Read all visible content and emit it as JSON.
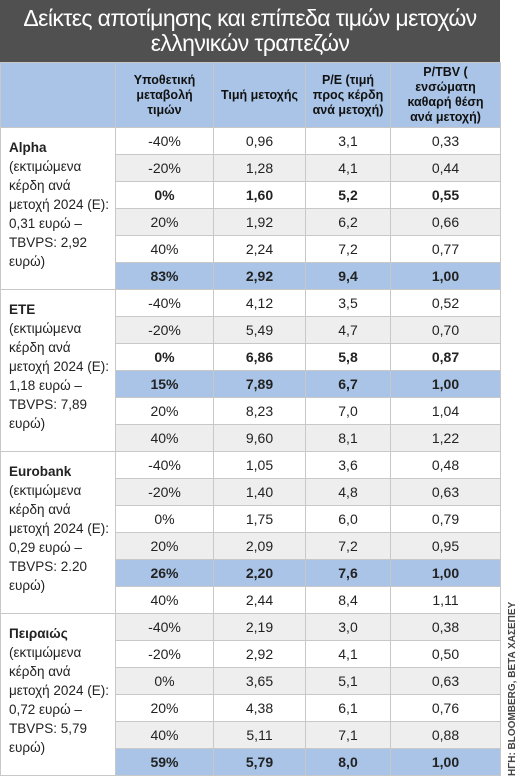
{
  "title": "Δείκτες αποτίμησης και επίπεδα τιμών μετοχών ελληνικών τραπεζών",
  "source": "ΗΓΗ: BLOOMBERG, BETA ΧΑΣΕΠΕΥ",
  "table": {
    "headers": [
      "Υποθετική μεταβολή τιμών",
      "Τιμή μετοχής",
      "P/E (τιμή προς κέρδη ανά μετοχή)",
      "P/TBV ( ενσώματη καθαρή θέση ανά μετοχή)"
    ],
    "groups": [
      {
        "bank": "Alpha",
        "note": "(εκτιμώμενα κέρδη ανά μετοχή 2024 (Ε): 0,31 ευρώ – TBVPS: 2,92 ευρώ)",
        "rows": [
          {
            "cells": [
              "-40%",
              "0,96",
              "3,1",
              "0,33"
            ],
            "emphasis": "plain"
          },
          {
            "cells": [
              "-20%",
              "1,28",
              "4,1",
              "0,44"
            ],
            "emphasis": "shaded"
          },
          {
            "cells": [
              "0%",
              "1,60",
              "5,2",
              "0,55"
            ],
            "emphasis": "bold"
          },
          {
            "cells": [
              "20%",
              "1,92",
              "6,2",
              "0,66"
            ],
            "emphasis": "shaded"
          },
          {
            "cells": [
              "40%",
              "2,24",
              "7,2",
              "0,77"
            ],
            "emphasis": "plain"
          },
          {
            "cells": [
              "83%",
              "2,92",
              "9,4",
              "1,00"
            ],
            "emphasis": "highlight"
          }
        ]
      },
      {
        "bank": "ΕΤΕ",
        "note": "(εκτιμώμενα κέρδη ανά μετοχή 2024 (Ε): 1,18 ευρώ – TBVPS: 7,89 ευρώ)",
        "rows": [
          {
            "cells": [
              "-40%",
              "4,12",
              "3,5",
              "0,52"
            ],
            "emphasis": "plain"
          },
          {
            "cells": [
              "-20%",
              "5,49",
              "4,7",
              "0,70"
            ],
            "emphasis": "shaded"
          },
          {
            "cells": [
              "0%",
              "6,86",
              "5,8",
              "0,87"
            ],
            "emphasis": "bold"
          },
          {
            "cells": [
              "15%",
              "7,89",
              "6,7",
              "1,00"
            ],
            "emphasis": "highlight"
          },
          {
            "cells": [
              "20%",
              "8,23",
              "7,0",
              "1,04"
            ],
            "emphasis": "plain"
          },
          {
            "cells": [
              "40%",
              "9,60",
              "8,1",
              "1,22"
            ],
            "emphasis": "shaded"
          }
        ]
      },
      {
        "bank": "Eurobank",
        "note": "(εκτιμώμενα κέρδη ανά μετοχή 2024 (Ε): 0,29 ευρώ – TBVPS: 2.20 ευρώ)",
        "rows": [
          {
            "cells": [
              "-40%",
              "1,05",
              "3,6",
              "0,48"
            ],
            "emphasis": "plain"
          },
          {
            "cells": [
              "-20%",
              "1,40",
              "4,8",
              "0,63"
            ],
            "emphasis": "shaded"
          },
          {
            "cells": [
              "0%",
              "1,75",
              "6,0",
              "0,79"
            ],
            "emphasis": "plain"
          },
          {
            "cells": [
              "20%",
              "2,09",
              "7,2",
              "0,95"
            ],
            "emphasis": "shaded"
          },
          {
            "cells": [
              "26%",
              "2,20",
              "7,6",
              "1,00"
            ],
            "emphasis": "highlight"
          },
          {
            "cells": [
              "40%",
              "2,44",
              "8,4",
              "1,11"
            ],
            "emphasis": "plain"
          }
        ]
      },
      {
        "bank": "Πειραιώς",
        "note": "(εκτιμώμενα κέρδη ανά μετοχή 2024 (Ε): 0,72 ευρώ – TBVPS: 5,79 ευρώ)",
        "rows": [
          {
            "cells": [
              "-40%",
              "2,19",
              "3,0",
              "0,38"
            ],
            "emphasis": "shaded"
          },
          {
            "cells": [
              "-20%",
              "2,92",
              "4,1",
              "0,50"
            ],
            "emphasis": "plain"
          },
          {
            "cells": [
              "0%",
              "3,65",
              "5,1",
              "0,63"
            ],
            "emphasis": "shaded"
          },
          {
            "cells": [
              "20%",
              "4,38",
              "6,1",
              "0,76"
            ],
            "emphasis": "plain"
          },
          {
            "cells": [
              "40%",
              "5,11",
              "7,1",
              "0,88"
            ],
            "emphasis": "shaded"
          },
          {
            "cells": [
              "59%",
              "5,79",
              "8,0",
              "1,00"
            ],
            "emphasis": "highlight"
          }
        ]
      }
    ]
  }
}
